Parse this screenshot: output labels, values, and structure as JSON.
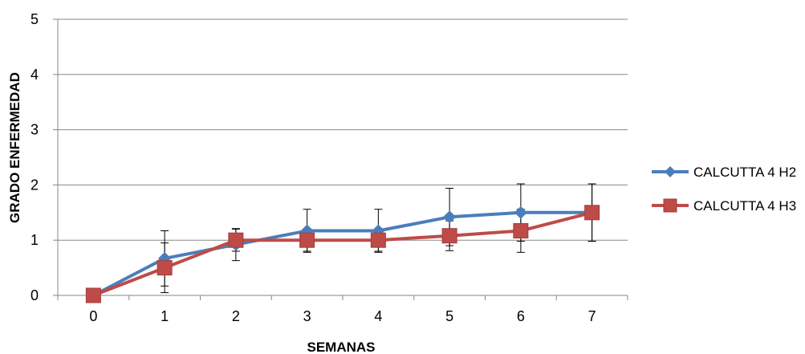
{
  "chart_data": {
    "type": "line",
    "xlabel": "SEMANAS",
    "ylabel": "GRADO ENFERMEDAD",
    "x": [
      0,
      1,
      2,
      3,
      4,
      5,
      6,
      7
    ],
    "ylim": [
      0,
      5
    ],
    "yticks": [
      0,
      1,
      2,
      3,
      4,
      5
    ],
    "grid": "horizontal",
    "legend": "right",
    "series": [
      {
        "name": "CALCUTTA 4 H2",
        "color": "#4a7ebb",
        "marker": "diamond",
        "values": [
          0,
          0.67,
          0.92,
          1.17,
          1.17,
          1.42,
          1.5,
          1.5
        ],
        "error": [
          0,
          0.5,
          0.29,
          0.39,
          0.39,
          0.52,
          0.52,
          0.52
        ]
      },
      {
        "name": "CALCUTTA 4 H3",
        "color": "#be4b48",
        "marker": "square",
        "values": [
          0,
          0.5,
          1.0,
          1.0,
          1.0,
          1.08,
          1.17,
          1.5
        ],
        "error": [
          0,
          0.45,
          0.2,
          0.2,
          0.2,
          0.27,
          0.39,
          0.52
        ]
      }
    ]
  }
}
